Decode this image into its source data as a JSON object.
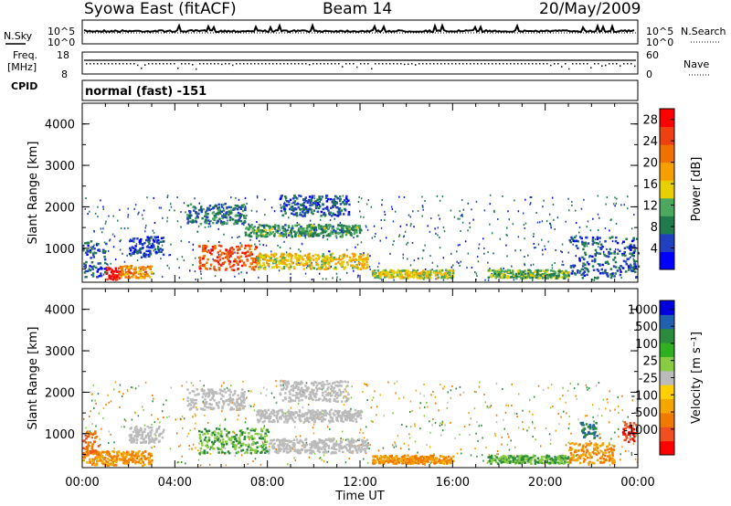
{
  "header": {
    "title": "Syowa East (fitACF)",
    "beam": "Beam 14",
    "date": "20/May/2009"
  },
  "colors": {
    "power_scale": [
      "#0000ff",
      "#2040c0",
      "#207a4c",
      "#4ca85e",
      "#e8d000",
      "#f5a000",
      "#f07000",
      "#ee4010",
      "#ff0000"
    ],
    "velocity_scale": [
      "#ff0000",
      "#f05020",
      "#f07a00",
      "#f5a500",
      "#ffd000",
      "#bbbbbb",
      "#88cc44",
      "#30b020",
      "#2b8a3c",
      "#2060b0",
      "#0000dd"
    ]
  },
  "chart_data": [
    {
      "type": "line",
      "panel": "noise",
      "left_label": "N.Sky",
      "right_label": "N.Search",
      "left_ticks": [
        "10^5",
        "10^0"
      ],
      "right_ticks": [
        "10^5",
        "10^0"
      ],
      "series": [
        {
          "name": "N.Sky",
          "style": "solid"
        },
        {
          "name": "N.Search",
          "style": "dotted"
        }
      ]
    },
    {
      "type": "scatter",
      "panel": "frequency",
      "left_label_lines": [
        "Freq.",
        "[MHz]"
      ],
      "right_label": "Nave",
      "left_ticks": [
        "18",
        "8"
      ],
      "right_ticks": [
        "60",
        "0"
      ],
      "ylim": [
        8,
        18
      ],
      "y2lim": [
        0,
        60
      ],
      "series": [
        {
          "name": "Nave",
          "style": "dotted"
        }
      ]
    },
    {
      "type": "table",
      "panel": "cpid",
      "label": "CPID",
      "value": "normal (fast) -151"
    },
    {
      "type": "heatmap",
      "panel": "power",
      "ylabel": "Slant Range [km]",
      "yticks": [
        "1000",
        "2000",
        "3000",
        "4000"
      ],
      "ylim": [
        180,
        4500
      ],
      "xlim": [
        0,
        24
      ],
      "xticks": [
        "00:00",
        "04:00",
        "08:00",
        "12:00",
        "16:00",
        "20:00",
        "00:00"
      ],
      "colorbar": {
        "label": "Power [dB]",
        "ticks": [
          "4",
          "8",
          "12",
          "16",
          "20",
          "24",
          "28"
        ],
        "range": [
          0,
          30
        ]
      },
      "regions": [
        {
          "t": [
            1.0,
            1.6
          ],
          "r": [
            240,
            560
          ],
          "value": 28
        },
        {
          "t": [
            1.6,
            3.0
          ],
          "r": [
            300,
            600
          ],
          "value": 20
        },
        {
          "t": [
            5.0,
            7.5
          ],
          "r": [
            500,
            1100
          ],
          "value": 24
        },
        {
          "t": [
            7.5,
            12.3
          ],
          "r": [
            520,
            900
          ],
          "value": 16
        },
        {
          "t": [
            7.0,
            12.0
          ],
          "r": [
            1300,
            1600
          ],
          "value": 10
        },
        {
          "t": [
            8.5,
            11.5
          ],
          "r": [
            1800,
            2300
          ],
          "value": 6
        },
        {
          "t": [
            4.5,
            7.0
          ],
          "r": [
            1600,
            2100
          ],
          "value": 8
        },
        {
          "t": [
            12.5,
            16.0
          ],
          "r": [
            300,
            500
          ],
          "value": 14
        },
        {
          "t": [
            17.5,
            21.0
          ],
          "r": [
            300,
            500
          ],
          "value": 12
        },
        {
          "t": [
            21.0,
            24.0
          ],
          "r": [
            300,
            1300
          ],
          "value": 6
        },
        {
          "t": [
            0.0,
            1.0
          ],
          "r": [
            300,
            1200
          ],
          "value": 6
        },
        {
          "t": [
            2.0,
            3.5
          ],
          "r": [
            800,
            1300
          ],
          "value": 5
        }
      ]
    },
    {
      "type": "heatmap",
      "panel": "velocity",
      "ylabel": "Slant Range [km]",
      "xlabel": "Time UT",
      "yticks": [
        "1000",
        "2000",
        "3000",
        "4000"
      ],
      "ylim": [
        180,
        4500
      ],
      "xlim": [
        0,
        24
      ],
      "xticks": [
        "00:00",
        "04:00",
        "08:00",
        "12:00",
        "16:00",
        "20:00",
        "00:00"
      ],
      "colorbar": {
        "label": "Velocity [m s⁻¹]",
        "ticks": [
          "-1000",
          "-500",
          "-100",
          "-25",
          "25",
          "100",
          "500",
          "1000"
        ]
      },
      "regions": [
        {
          "t": [
            0.0,
            3.0
          ],
          "r": [
            250,
            600
          ],
          "value": -100
        },
        {
          "t": [
            0.0,
            0.7
          ],
          "r": [
            500,
            1100
          ],
          "value": -500
        },
        {
          "t": [
            2.0,
            3.5
          ],
          "r": [
            800,
            1200
          ],
          "value": 0
        },
        {
          "t": [
            4.5,
            7.0
          ],
          "r": [
            1600,
            2100
          ],
          "value": 0
        },
        {
          "t": [
            5.0,
            8.0
          ],
          "r": [
            550,
            1150
          ],
          "value": 100
        },
        {
          "t": [
            8.0,
            12.3
          ],
          "r": [
            550,
            900
          ],
          "value": 0
        },
        {
          "t": [
            7.5,
            12.0
          ],
          "r": [
            1300,
            1600
          ],
          "value": 0
        },
        {
          "t": [
            8.5,
            11.5
          ],
          "r": [
            1800,
            2300
          ],
          "value": 0
        },
        {
          "t": [
            12.5,
            16.0
          ],
          "r": [
            300,
            500
          ],
          "value": -100
        },
        {
          "t": [
            17.5,
            21.0
          ],
          "r": [
            300,
            500
          ],
          "value": 100
        },
        {
          "t": [
            21.0,
            23.0
          ],
          "r": [
            300,
            800
          ],
          "value": -100
        },
        {
          "t": [
            23.3,
            23.9
          ],
          "r": [
            800,
            1300
          ],
          "value": -1000
        },
        {
          "t": [
            21.5,
            22.2
          ],
          "r": [
            900,
            1300
          ],
          "value": 500
        }
      ]
    }
  ]
}
